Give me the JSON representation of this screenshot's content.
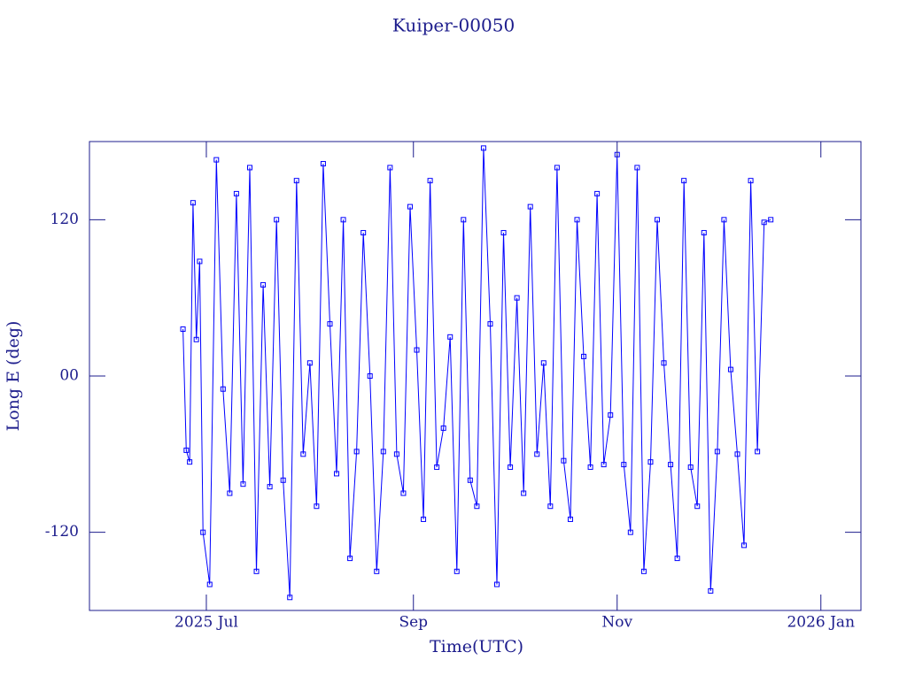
{
  "chart_data": {
    "type": "line",
    "title": "Kuiper-00050",
    "x_label": "Time(UTC)",
    "y_label": "Long E (deg)",
    "xlim": [
      147,
      378
    ],
    "xticks": [
      {
        "value": 182,
        "label": "2025 Jul"
      },
      {
        "value": 244,
        "label": "Sep"
      },
      {
        "value": 305,
        "label": "Nov"
      },
      {
        "value": 366,
        "label": "2026 Jan"
      }
    ],
    "ylim": [
      -180,
      180
    ],
    "yticks": [
      -120,
      {
        "value": 0,
        "label": "00"
      },
      120
    ],
    "series": [
      {
        "color": "#0000ff",
        "x": [
          175,
          176,
          177,
          178,
          179,
          180,
          181,
          183,
          185,
          187,
          189,
          191,
          193,
          195,
          197,
          199,
          201,
          203,
          205,
          207,
          209,
          211,
          213,
          215,
          217,
          219,
          221,
          223,
          225,
          227,
          229,
          231,
          233,
          235,
          237,
          239,
          241,
          243,
          245,
          247,
          249,
          251,
          253,
          255,
          257,
          259,
          261,
          263,
          265,
          267,
          269,
          271,
          273,
          275,
          277,
          279,
          281,
          283,
          285,
          287,
          289,
          291,
          293,
          295,
          297,
          299,
          301,
          303,
          305,
          307,
          309,
          311,
          313,
          315,
          317,
          319,
          321,
          323,
          325,
          327,
          329,
          331,
          333,
          335,
          337,
          339,
          341,
          343,
          345,
          347,
          349,
          351
        ],
        "values": [
          36,
          -57,
          -66,
          133,
          28,
          88,
          -120,
          -160,
          166,
          -10,
          -90,
          140,
          -83,
          160,
          -150,
          70,
          -85,
          120,
          -80,
          -170,
          150,
          -60,
          10,
          -100,
          163,
          40,
          -75,
          120,
          -140,
          -58,
          110,
          0,
          -150,
          -58,
          160,
          -60,
          -90,
          130,
          20,
          -110,
          150,
          -70,
          -40,
          30,
          -150,
          120,
          -80,
          -100,
          175,
          40,
          -160,
          110,
          -70,
          60,
          -90,
          130,
          -60,
          10,
          -100,
          160,
          -65,
          -110,
          120,
          15,
          -70,
          140,
          -68,
          -30,
          170,
          -68,
          -120,
          160,
          -150,
          -66,
          120,
          10,
          -68,
          -140,
          150,
          -70,
          -100,
          110,
          -165,
          -58,
          120,
          5,
          -60,
          -130,
          150,
          -58,
          118,
          120
        ]
      }
    ]
  }
}
